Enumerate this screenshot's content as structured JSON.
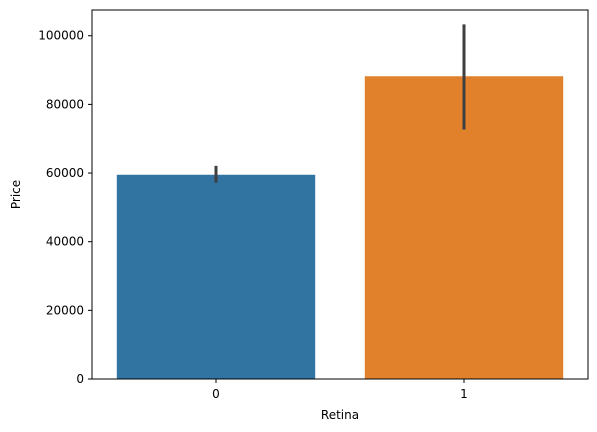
{
  "chart_data": {
    "type": "bar",
    "categories": [
      "0",
      "1"
    ],
    "values": [
      59500,
      88200
    ],
    "error_bars": [
      {
        "low": 57200,
        "high": 62100
      },
      {
        "low": 72700,
        "high": 103300
      }
    ],
    "colors": [
      "#3274a1",
      "#e1812c"
    ],
    "error_color": "#3f3f3f",
    "xlabel": "Retina",
    "ylabel": "Price",
    "ylim": [
      0,
      107500
    ],
    "yticks": [
      0,
      20000,
      40000,
      60000,
      80000,
      100000
    ],
    "grid": false
  }
}
